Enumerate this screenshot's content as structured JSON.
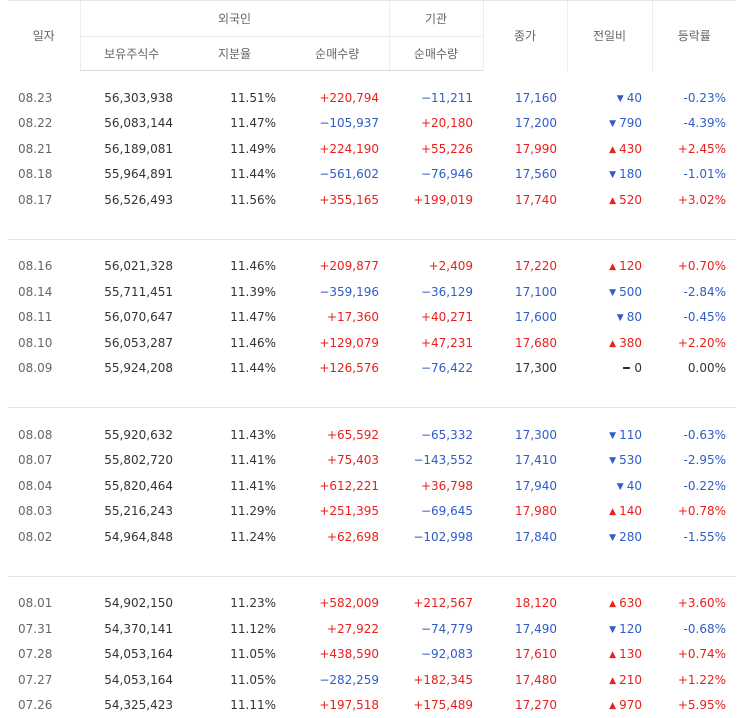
{
  "header": {
    "date_label": "일자",
    "foreign_label": "외국인",
    "institution_label": "기관",
    "close_label": "종가",
    "change_label": "전일비",
    "rate_label": "등락률",
    "sub_holdings": "보유주식수",
    "sub_ratio": "지분율",
    "sub_foreign_net": "순매수량",
    "sub_inst_net": "순매수량"
  },
  "colors": {
    "up": "#e8201c",
    "down": "#2f5cc9",
    "flat": "#333333"
  },
  "groups": [
    [
      {
        "date": "08.23",
        "holdings": "56,303,938",
        "ratio": "11.51%",
        "fnet": "+220,794",
        "inet": "−11,211",
        "close": "17,160",
        "dir": "down",
        "change": "40",
        "rate": "-0.23%"
      },
      {
        "date": "08.22",
        "holdings": "56,083,144",
        "ratio": "11.47%",
        "fnet": "−105,937",
        "inet": "+20,180",
        "close": "17,200",
        "dir": "down",
        "change": "790",
        "rate": "-4.39%"
      },
      {
        "date": "08.21",
        "holdings": "56,189,081",
        "ratio": "11.49%",
        "fnet": "+224,190",
        "inet": "+55,226",
        "close": "17,990",
        "dir": "up",
        "change": "430",
        "rate": "+2.45%"
      },
      {
        "date": "08.18",
        "holdings": "55,964,891",
        "ratio": "11.44%",
        "fnet": "−561,602",
        "inet": "−76,946",
        "close": "17,560",
        "dir": "down",
        "change": "180",
        "rate": "-1.01%"
      },
      {
        "date": "08.17",
        "holdings": "56,526,493",
        "ratio": "11.56%",
        "fnet": "+355,165",
        "inet": "+199,019",
        "close": "17,740",
        "dir": "up",
        "change": "520",
        "rate": "+3.02%"
      }
    ],
    [
      {
        "date": "08.16",
        "holdings": "56,021,328",
        "ratio": "11.46%",
        "fnet": "+209,877",
        "inet": "+2,409",
        "close": "17,220",
        "dir": "up",
        "change": "120",
        "rate": "+0.70%"
      },
      {
        "date": "08.14",
        "holdings": "55,711,451",
        "ratio": "11.39%",
        "fnet": "−359,196",
        "inet": "−36,129",
        "close": "17,100",
        "dir": "down",
        "change": "500",
        "rate": "-2.84%"
      },
      {
        "date": "08.11",
        "holdings": "56,070,647",
        "ratio": "11.47%",
        "fnet": "+17,360",
        "inet": "+40,271",
        "close": "17,600",
        "dir": "down",
        "change": "80",
        "rate": "-0.45%"
      },
      {
        "date": "08.10",
        "holdings": "56,053,287",
        "ratio": "11.46%",
        "fnet": "+129,079",
        "inet": "+47,231",
        "close": "17,680",
        "dir": "up",
        "change": "380",
        "rate": "+2.20%"
      },
      {
        "date": "08.09",
        "holdings": "55,924,208",
        "ratio": "11.44%",
        "fnet": "+126,576",
        "inet": "−76,422",
        "close": "17,300",
        "dir": "flat",
        "change": "0",
        "rate": "0.00%"
      }
    ],
    [
      {
        "date": "08.08",
        "holdings": "55,920,632",
        "ratio": "11.43%",
        "fnet": "+65,592",
        "inet": "−65,332",
        "close": "17,300",
        "dir": "down",
        "change": "110",
        "rate": "-0.63%"
      },
      {
        "date": "08.07",
        "holdings": "55,802,720",
        "ratio": "11.41%",
        "fnet": "+75,403",
        "inet": "−143,552",
        "close": "17,410",
        "dir": "down",
        "change": "530",
        "rate": "-2.95%"
      },
      {
        "date": "08.04",
        "holdings": "55,820,464",
        "ratio": "11.41%",
        "fnet": "+612,221",
        "inet": "+36,798",
        "close": "17,940",
        "dir": "down",
        "change": "40",
        "rate": "-0.22%"
      },
      {
        "date": "08.03",
        "holdings": "55,216,243",
        "ratio": "11.29%",
        "fnet": "+251,395",
        "inet": "−69,645",
        "close": "17,980",
        "dir": "up",
        "change": "140",
        "rate": "+0.78%"
      },
      {
        "date": "08.02",
        "holdings": "54,964,848",
        "ratio": "11.24%",
        "fnet": "+62,698",
        "inet": "−102,998",
        "close": "17,840",
        "dir": "down",
        "change": "280",
        "rate": "-1.55%"
      }
    ],
    [
      {
        "date": "08.01",
        "holdings": "54,902,150",
        "ratio": "11.23%",
        "fnet": "+582,009",
        "inet": "+212,567",
        "close": "18,120",
        "dir": "up",
        "change": "630",
        "rate": "+3.60%"
      },
      {
        "date": "07.31",
        "holdings": "54,370,141",
        "ratio": "11.12%",
        "fnet": "+27,922",
        "inet": "−74,779",
        "close": "17,490",
        "dir": "down",
        "change": "120",
        "rate": "-0.68%"
      },
      {
        "date": "07.28",
        "holdings": "54,053,164",
        "ratio": "11.05%",
        "fnet": "+438,590",
        "inet": "−92,083",
        "close": "17,610",
        "dir": "up",
        "change": "130",
        "rate": "+0.74%"
      },
      {
        "date": "07.27",
        "holdings": "54,053,164",
        "ratio": "11.05%",
        "fnet": "−282,259",
        "inet": "+182,345",
        "close": "17,480",
        "dir": "up",
        "change": "210",
        "rate": "+1.22%"
      },
      {
        "date": "07.26",
        "holdings": "54,325,423",
        "ratio": "11.11%",
        "fnet": "+197,518",
        "inet": "+175,489",
        "close": "17,270",
        "dir": "up",
        "change": "970",
        "rate": "+5.95%"
      }
    ]
  ]
}
